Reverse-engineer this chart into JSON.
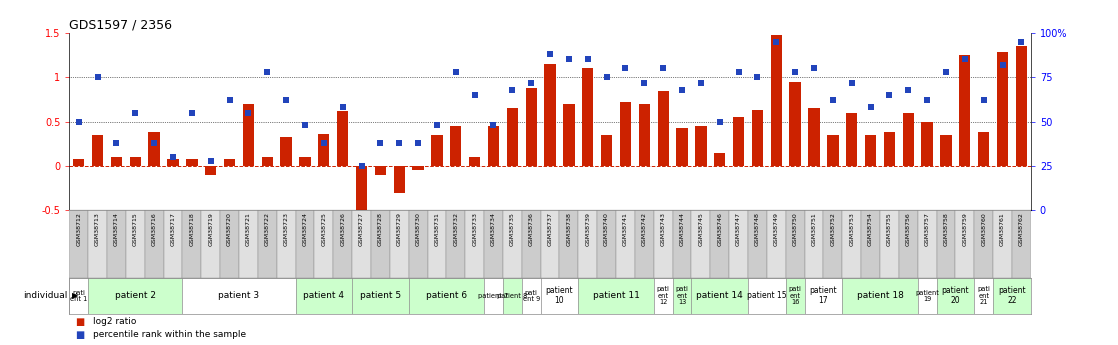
{
  "title": "GDS1597 / 2356",
  "samples": [
    "GSM38712",
    "GSM38713",
    "GSM38714",
    "GSM38715",
    "GSM38716",
    "GSM38717",
    "GSM38718",
    "GSM38719",
    "GSM38720",
    "GSM38721",
    "GSM38722",
    "GSM38723",
    "GSM38724",
    "GSM38725",
    "GSM38726",
    "GSM38727",
    "GSM38728",
    "GSM38729",
    "GSM38730",
    "GSM38731",
    "GSM38732",
    "GSM38733",
    "GSM38734",
    "GSM38735",
    "GSM38736",
    "GSM38737",
    "GSM38738",
    "GSM38739",
    "GSM38740",
    "GSM38741",
    "GSM38742",
    "GSM38743",
    "GSM38744",
    "GSM38745",
    "GSM38746",
    "GSM38747",
    "GSM38748",
    "GSM38749",
    "GSM38750",
    "GSM38751",
    "GSM38752",
    "GSM38753",
    "GSM38754",
    "GSM38755",
    "GSM38756",
    "GSM38757",
    "GSM38758",
    "GSM38759",
    "GSM38760",
    "GSM38761",
    "GSM38762"
  ],
  "log2_ratio": [
    0.08,
    0.35,
    0.1,
    0.1,
    0.38,
    0.08,
    0.08,
    -0.1,
    0.08,
    0.7,
    0.1,
    0.33,
    0.1,
    0.36,
    0.62,
    -0.5,
    -0.1,
    -0.3,
    -0.05,
    0.35,
    0.45,
    0.1,
    0.45,
    0.65,
    0.88,
    1.15,
    0.7,
    1.1,
    0.35,
    0.72,
    0.7,
    0.85,
    0.43,
    0.45,
    0.15,
    0.55,
    0.63,
    1.48,
    0.95,
    0.65,
    0.35,
    0.6,
    0.35,
    0.38,
    0.6,
    0.5,
    0.35,
    1.25,
    0.38,
    1.28,
    1.35
  ],
  "percentile": [
    50,
    75,
    38,
    55,
    38,
    30,
    55,
    28,
    62,
    55,
    78,
    62,
    48,
    38,
    58,
    25,
    38,
    38,
    38,
    48,
    78,
    65,
    48,
    68,
    72,
    88,
    85,
    85,
    75,
    80,
    72,
    80,
    68,
    72,
    50,
    78,
    75,
    95,
    78,
    80,
    62,
    72,
    58,
    65,
    68,
    62,
    78,
    85,
    62,
    82,
    95
  ],
  "ylim_left": [
    -0.5,
    1.5
  ],
  "ylim_right": [
    0,
    100
  ],
  "yticks_left": [
    -0.5,
    0.0,
    0.5,
    1.0,
    1.5
  ],
  "ytick_labels_left": [
    "-0.5",
    "0",
    "0.5",
    "1",
    "1.5"
  ],
  "yticks_right_vals": [
    0,
    25,
    50,
    75,
    100
  ],
  "ytick_labels_right": [
    "0",
    "25",
    "50",
    "75",
    "100%"
  ],
  "hlines": [
    0.5,
    1.0
  ],
  "bar_color": "#cc2200",
  "dot_color": "#2244bb",
  "zero_line_color": "#cc2200",
  "tick_bg_even": "#cccccc",
  "tick_bg_odd": "#e0e0e0",
  "patients": [
    {
      "label": "pati\nent 1",
      "start": 0,
      "end": 0,
      "color": "#ffffff"
    },
    {
      "label": "patient 2",
      "start": 1,
      "end": 5,
      "color": "#ccffcc"
    },
    {
      "label": "patient 3",
      "start": 6,
      "end": 11,
      "color": "#ffffff"
    },
    {
      "label": "patient 4",
      "start": 12,
      "end": 14,
      "color": "#ccffcc"
    },
    {
      "label": "patient 5",
      "start": 15,
      "end": 17,
      "color": "#ccffcc"
    },
    {
      "label": "patient 6",
      "start": 18,
      "end": 21,
      "color": "#ccffcc"
    },
    {
      "label": "patient 7",
      "start": 22,
      "end": 22,
      "color": "#ffffff"
    },
    {
      "label": "patient 8",
      "start": 23,
      "end": 23,
      "color": "#ccffcc"
    },
    {
      "label": "pati\nent 9",
      "start": 24,
      "end": 24,
      "color": "#ffffff"
    },
    {
      "label": "patient\n10",
      "start": 25,
      "end": 26,
      "color": "#ffffff"
    },
    {
      "label": "patient 11",
      "start": 27,
      "end": 30,
      "color": "#ccffcc"
    },
    {
      "label": "pati\nent\n12",
      "start": 31,
      "end": 31,
      "color": "#ffffff"
    },
    {
      "label": "pati\nent\n13",
      "start": 32,
      "end": 32,
      "color": "#ccffcc"
    },
    {
      "label": "patient 14",
      "start": 33,
      "end": 35,
      "color": "#ccffcc"
    },
    {
      "label": "patient 15",
      "start": 36,
      "end": 37,
      "color": "#ffffff"
    },
    {
      "label": "pati\nent\n16",
      "start": 38,
      "end": 38,
      "color": "#ccffcc"
    },
    {
      "label": "patient\n17",
      "start": 39,
      "end": 40,
      "color": "#ffffff"
    },
    {
      "label": "patient 18",
      "start": 41,
      "end": 44,
      "color": "#ccffcc"
    },
    {
      "label": "patient\n19",
      "start": 45,
      "end": 45,
      "color": "#ffffff"
    },
    {
      "label": "patient\n20",
      "start": 46,
      "end": 47,
      "color": "#ccffcc"
    },
    {
      "label": "pati\nent\n21",
      "start": 48,
      "end": 48,
      "color": "#ffffff"
    },
    {
      "label": "patient\n22",
      "start": 49,
      "end": 50,
      "color": "#ccffcc"
    }
  ],
  "legend_items": [
    {
      "color": "#cc2200",
      "label": "log2 ratio"
    },
    {
      "color": "#2244bb",
      "label": "percentile rank within the sample"
    }
  ],
  "individual_label": "individual"
}
